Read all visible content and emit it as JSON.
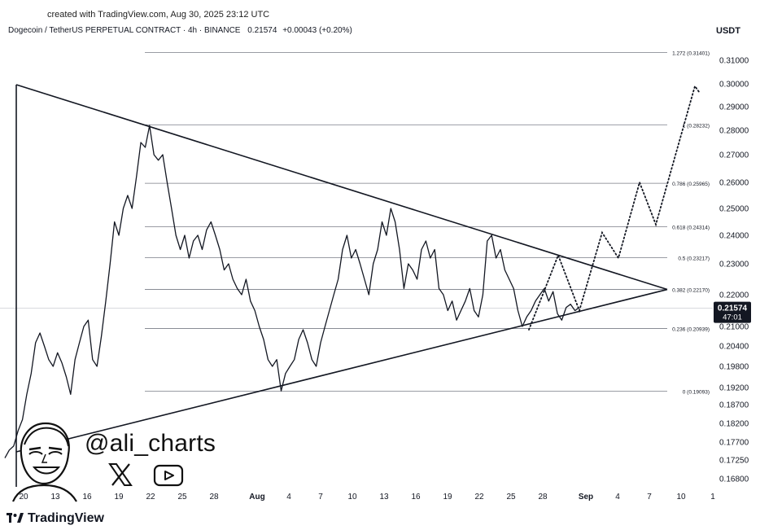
{
  "header": {
    "created_text": "created with TradingView.com, Aug 30, 2025 23:12 UTC",
    "symbol_text": "Dogecoin / TetherUS PERPETUAL CONTRACT · 4h · BINANCE",
    "price": "0.21574",
    "change": "+0.00043 (+0.20%)",
    "currency": "USDT"
  },
  "footer": {
    "watermark": "TradingView"
  },
  "branding": {
    "handle": "@ali_charts",
    "icons": [
      "avatar-illustration",
      "x-logo-icon",
      "youtube-play-icon"
    ]
  },
  "colors": {
    "line": "#131722",
    "fib_line": "#787b86",
    "price_badge_bg": "#131722",
    "price_badge_text": "#ffffff"
  },
  "chart_data": {
    "type": "line",
    "title": "Dogecoin / TetherUS PERPETUAL CONTRACT · 4h · BINANCE",
    "ylim": [
      0.1655,
      0.3215
    ],
    "x_ticks": [
      "20",
      "13",
      "16",
      "19",
      "22",
      "25",
      "28",
      "Aug",
      "4",
      "7",
      "10",
      "13",
      "16",
      "19",
      "22",
      "25",
      "28",
      "Sep",
      "4",
      "7",
      "10",
      "1"
    ],
    "y_ticks": [
      0.31,
      0.3,
      0.29,
      0.28,
      0.27,
      0.26,
      0.25,
      0.24,
      0.23,
      0.22,
      0.21,
      0.204,
      0.198,
      0.192,
      0.187,
      0.182,
      0.177,
      0.1725,
      0.168
    ],
    "y_tick_labels": [
      "0.31000",
      "0.30000",
      "0.29000",
      "0.28000",
      "0.27000",
      "0.26000",
      "0.25000",
      "0.24000",
      "0.23000",
      "0.22000",
      "0.21000",
      "0.20400",
      "0.19800",
      "0.19200",
      "0.18700",
      "0.18200",
      "0.17700",
      "0.17250",
      "0.16800"
    ],
    "current_price": {
      "value": 0.21574,
      "label": "0.21574",
      "countdown": "47:01"
    },
    "fib_levels": [
      {
        "ratio": "1.272",
        "value": 0.31401,
        "label": "1.272 (0.31401)"
      },
      {
        "ratio": "1",
        "value": 0.28232,
        "label": "1 (0.28232)"
      },
      {
        "ratio": "0.786",
        "value": 0.25965,
        "label": "0.786 (0.25965)"
      },
      {
        "ratio": "0.618",
        "value": 0.24314,
        "label": "0.618 (0.24314)"
      },
      {
        "ratio": "0.5",
        "value": 0.23217,
        "label": "0.5 (0.23217)"
      },
      {
        "ratio": "0.382",
        "value": 0.2217,
        "label": "0.382 (0.22170)"
      },
      {
        "ratio": "0.236",
        "value": 0.20939,
        "label": "0.236 (0.20939)"
      },
      {
        "ratio": "0",
        "value": 0.19093,
        "label": "0 (0.19093)"
      }
    ],
    "price_series": [
      0.173,
      0.175,
      0.176,
      0.18,
      0.183,
      0.19,
      0.196,
      0.205,
      0.208,
      0.204,
      0.2,
      0.198,
      0.202,
      0.199,
      0.195,
      0.19,
      0.2,
      0.205,
      0.21,
      0.212,
      0.2,
      0.198,
      0.207,
      0.218,
      0.23,
      0.245,
      0.24,
      0.25,
      0.255,
      0.25,
      0.262,
      0.275,
      0.273,
      0.282,
      0.27,
      0.268,
      0.27,
      0.26,
      0.25,
      0.24,
      0.235,
      0.24,
      0.232,
      0.238,
      0.24,
      0.235,
      0.242,
      0.245,
      0.24,
      0.235,
      0.228,
      0.23,
      0.225,
      0.222,
      0.22,
      0.225,
      0.218,
      0.215,
      0.21,
      0.206,
      0.2,
      0.198,
      0.2,
      0.191,
      0.196,
      0.198,
      0.2,
      0.206,
      0.209,
      0.205,
      0.2,
      0.198,
      0.205,
      0.21,
      0.215,
      0.22,
      0.225,
      0.235,
      0.24,
      0.232,
      0.235,
      0.23,
      0.225,
      0.22,
      0.23,
      0.235,
      0.245,
      0.24,
      0.25,
      0.245,
      0.235,
      0.222,
      0.23,
      0.228,
      0.225,
      0.235,
      0.238,
      0.232,
      0.235,
      0.222,
      0.22,
      0.215,
      0.218,
      0.212,
      0.215,
      0.218,
      0.222,
      0.215,
      0.213,
      0.22,
      0.238,
      0.24,
      0.232,
      0.235,
      0.228,
      0.225,
      0.222,
      0.215,
      0.21,
      0.213,
      0.215,
      0.218,
      0.22,
      0.222,
      0.218,
      0.221,
      0.214,
      0.212,
      0.216,
      0.217,
      0.215,
      0.216
    ],
    "projection": [
      [
        0.216,
        0.2165
      ],
      [
        0.224,
        0.233
      ],
      [
        0.213,
        0.215
      ],
      [
        0.239,
        0.241
      ],
      [
        0.236,
        0.232
      ],
      [
        0.256,
        0.26
      ],
      [
        0.244,
        0.248
      ],
      [
        0.282,
        0.298
      ],
      [
        0.296,
        0.296
      ]
    ],
    "trendlines": [
      "descending resistance from 0.299 to apex",
      "ascending support from 0.173 to apex"
    ]
  }
}
